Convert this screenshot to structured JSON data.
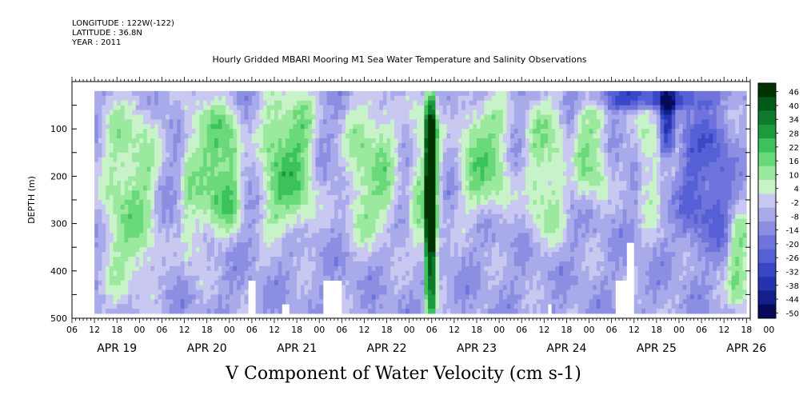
{
  "header": {
    "longitude": "LONGITUDE : 122W(-122)",
    "latitude": "LATITUDE : 36.8N",
    "year": "YEAR : 2011"
  },
  "title": "Hourly Gridded MBARI Mooring M1 Sea Water Temperature and Salinity Observations",
  "bottom_title": "V Component of Water Velocity (cm s-1)",
  "chart_data": {
    "type": "heatmap",
    "ylabel": "DEPTH (m)",
    "y_reversed": true,
    "ylim": [
      0,
      500
    ],
    "yticks": [
      "100",
      "200",
      "300",
      "400",
      "500"
    ],
    "xlim_hours": [
      0,
      181
    ],
    "hour_tick_labels": [
      "06",
      "12",
      "18",
      "00",
      "06",
      "12",
      "18",
      "00",
      "06",
      "12",
      "18",
      "00",
      "06",
      "12",
      "18",
      "00",
      "06",
      "12",
      "18",
      "00",
      "06",
      "12",
      "18",
      "00",
      "06",
      "12",
      "18",
      "00",
      "06",
      "12",
      "18",
      "00"
    ],
    "date_labels": [
      "APR 19",
      "APR 20",
      "APR 21",
      "APR 22",
      "APR 23",
      "APR 24",
      "APR 25",
      "APR 26"
    ],
    "colorbar": {
      "labels": [
        "46",
        "40",
        "34",
        "28",
        "22",
        "16",
        "10",
        "4",
        "-2",
        "-8",
        "-14",
        "-20",
        "-26",
        "-32",
        "-38",
        "-44",
        "-50"
      ],
      "colors": [
        "#003300",
        "#005a18",
        "#0e7a2e",
        "#1e9a3e",
        "#3cc25a",
        "#6ad97a",
        "#9be99f",
        "#c8f3c8",
        "#c8c8f0",
        "#a9aaea",
        "#8c8ee2",
        "#6f74dc",
        "#5560d6",
        "#3a48c8",
        "#2434b0",
        "#13208a",
        "#050a5a"
      ],
      "range": [
        -50,
        52
      ]
    },
    "data_extent": {
      "depth": [
        20,
        490
      ],
      "hours": [
        6,
        180
      ]
    },
    "features": [
      {
        "hours": [
          9,
          22
        ],
        "depth": [
          60,
          430
        ],
        "v": 14
      },
      {
        "hours": [
          30,
          35
        ],
        "depth": [
          40,
          380
        ],
        "v": 10
      },
      {
        "hours": [
          36,
          44
        ],
        "depth": [
          70,
          300
        ],
        "v": 22
      },
      {
        "hours": [
          51,
          64
        ],
        "depth": [
          40,
          300
        ],
        "v": 20
      },
      {
        "hours": [
          74,
          86
        ],
        "depth": [
          60,
          320
        ],
        "v": 14
      },
      {
        "hours": [
          95,
          96.5
        ],
        "depth": [
          20,
          490
        ],
        "v": 44
      },
      {
        "hours": [
          91,
          98
        ],
        "depth": [
          60,
          360
        ],
        "v": 12
      },
      {
        "hours": [
          104,
          116
        ],
        "depth": [
          60,
          260
        ],
        "v": 16
      },
      {
        "hours": [
          122,
          131
        ],
        "depth": [
          50,
          320
        ],
        "v": 12
      },
      {
        "hours": [
          135,
          142
        ],
        "depth": [
          60,
          240
        ],
        "v": 14
      },
      {
        "hours": [
          152,
          156
        ],
        "depth": [
          60,
          280
        ],
        "v": 8
      },
      {
        "hours": [
          158,
          160
        ],
        "depth": [
          40,
          140
        ],
        "v": -30
      },
      {
        "hours": [
          163,
          175
        ],
        "depth": [
          80,
          330
        ],
        "v": -22
      },
      {
        "hours": [
          176,
          180
        ],
        "depth": [
          300,
          470
        ],
        "v": 14
      },
      {
        "hours": [
          140,
          170
        ],
        "depth": [
          20,
          40
        ],
        "v": -28
      }
    ],
    "missing": [
      {
        "hours": [
          47,
          49
        ],
        "depth": [
          420,
          490
        ]
      },
      {
        "hours": [
          56,
          58
        ],
        "depth": [
          470,
          490
        ]
      },
      {
        "hours": [
          67,
          72
        ],
        "depth": [
          420,
          490
        ]
      },
      {
        "hours": [
          127,
          128
        ],
        "depth": [
          470,
          490
        ]
      },
      {
        "hours": [
          145,
          148
        ],
        "depth": [
          420,
          490
        ]
      },
      {
        "hours": [
          148,
          150
        ],
        "depth": [
          340,
          490
        ]
      }
    ]
  }
}
